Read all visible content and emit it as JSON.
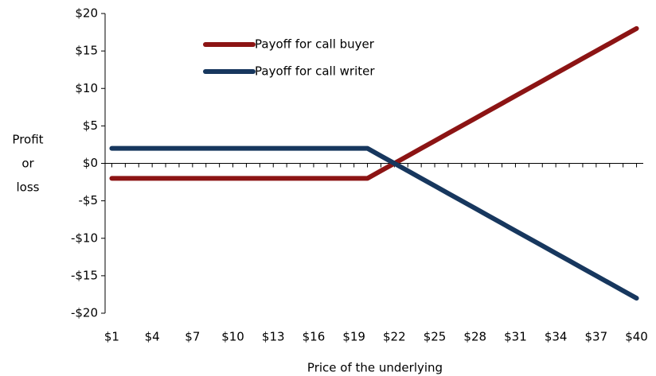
{
  "chart_data": {
    "type": "line",
    "xlabel": "Price of the underlying",
    "ylabel": [
      "Profit",
      "or",
      "loss"
    ],
    "x": [
      1,
      2,
      3,
      4,
      5,
      6,
      7,
      8,
      9,
      10,
      11,
      12,
      13,
      14,
      15,
      16,
      17,
      18,
      19,
      20,
      21,
      22,
      23,
      24,
      25,
      26,
      27,
      28,
      29,
      30,
      31,
      32,
      33,
      34,
      35,
      36,
      37,
      38,
      39,
      40
    ],
    "xlim": [
      0.5,
      40.5
    ],
    "xticks": [
      {
        "value": 1,
        "label": "$1"
      },
      {
        "value": 4,
        "label": "$4"
      },
      {
        "value": 7,
        "label": "$7"
      },
      {
        "value": 10,
        "label": "$10"
      },
      {
        "value": 13,
        "label": "$13"
      },
      {
        "value": 16,
        "label": "$16"
      },
      {
        "value": 19,
        "label": "$19"
      },
      {
        "value": 22,
        "label": "$22"
      },
      {
        "value": 25,
        "label": "$25"
      },
      {
        "value": 28,
        "label": "$28"
      },
      {
        "value": 31,
        "label": "$31"
      },
      {
        "value": 34,
        "label": "$34"
      },
      {
        "value": 37,
        "label": "$37"
      },
      {
        "value": 40,
        "label": "$40"
      }
    ],
    "ylim": [
      -20,
      20
    ],
    "yticks": [
      {
        "value": 20,
        "label": "$20"
      },
      {
        "value": 15,
        "label": "$15"
      },
      {
        "value": 10,
        "label": "$10"
      },
      {
        "value": 5,
        "label": "$5"
      },
      {
        "value": 0,
        "label": "$0"
      },
      {
        "value": -5,
        "label": "-$5"
      },
      {
        "value": -10,
        "label": "-$10"
      },
      {
        "value": -15,
        "label": "-$15"
      },
      {
        "value": -20,
        "label": "-$20"
      }
    ],
    "legend": "upper left",
    "series": [
      {
        "name": "Payoff for call buyer",
        "color": "#8c1414",
        "values": [
          -2,
          -2,
          -2,
          -2,
          -2,
          -2,
          -2,
          -2,
          -2,
          -2,
          -2,
          -2,
          -2,
          -2,
          -2,
          -2,
          -2,
          -2,
          -2,
          -2,
          -1,
          0,
          1,
          2,
          3,
          4,
          5,
          6,
          7,
          8,
          9,
          10,
          11,
          12,
          13,
          14,
          15,
          16,
          17,
          18
        ]
      },
      {
        "name": "Payoff for call writer",
        "color": "#17375e",
        "values": [
          2,
          2,
          2,
          2,
          2,
          2,
          2,
          2,
          2,
          2,
          2,
          2,
          2,
          2,
          2,
          2,
          2,
          2,
          2,
          2,
          1,
          0,
          -1,
          -2,
          -3,
          -4,
          -5,
          -6,
          -7,
          -8,
          -9,
          -10,
          -11,
          -12,
          -13,
          -14,
          -15,
          -16,
          -17,
          -18
        ]
      }
    ]
  }
}
